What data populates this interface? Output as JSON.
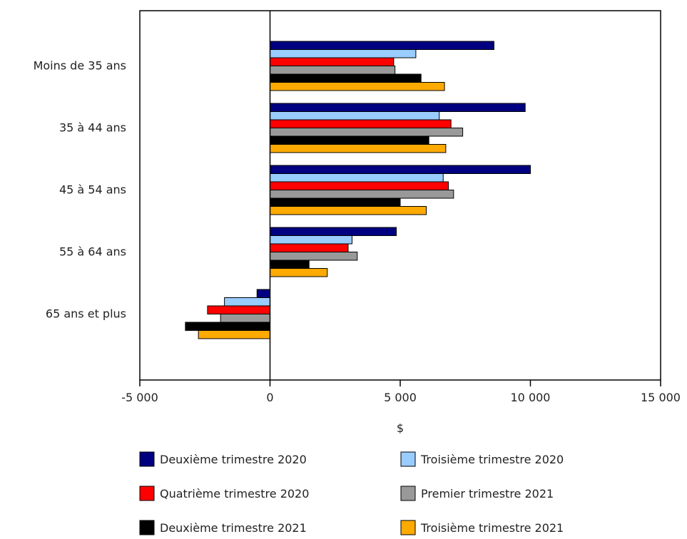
{
  "chart_data": {
    "type": "bar",
    "orientation": "horizontal",
    "title": "",
    "xlabel": "$",
    "ylabel": "",
    "xlim": [
      -5000,
      15000
    ],
    "xticks": [
      -5000,
      0,
      5000,
      10000,
      15000
    ],
    "xtick_labels": [
      "-5 000",
      "0",
      "5 000",
      "10 000",
      "15 000"
    ],
    "grid": false,
    "legend_position": "bottom",
    "categories": [
      "Moins de 35 ans",
      "35 à 44 ans",
      "45 à 54 ans",
      "55 à 64 ans",
      "65 ans et plus"
    ],
    "series": [
      {
        "name": "Deuxième trimestre 2020",
        "color": "#000080",
        "values": [
          8600,
          9800,
          10000,
          4850,
          -500
        ]
      },
      {
        "name": "Troisième trimestre 2020",
        "color": "#99ccff",
        "values": [
          5600,
          6500,
          6650,
          3150,
          -1750
        ]
      },
      {
        "name": "Quatrième trimestre 2020",
        "color": "#ff0000",
        "values": [
          4750,
          6950,
          6850,
          3000,
          -2400
        ]
      },
      {
        "name": "Premier trimestre 2021",
        "color": "#999999",
        "values": [
          4800,
          7400,
          7050,
          3350,
          -1900
        ]
      },
      {
        "name": "Deuxième trimestre 2021",
        "color": "#000000",
        "values": [
          5800,
          6100,
          5000,
          1500,
          -3250
        ]
      },
      {
        "name": "Troisième trimestre 2021",
        "color": "#ffaa00",
        "values": [
          6700,
          6750,
          6000,
          2200,
          -2750
        ]
      }
    ]
  }
}
